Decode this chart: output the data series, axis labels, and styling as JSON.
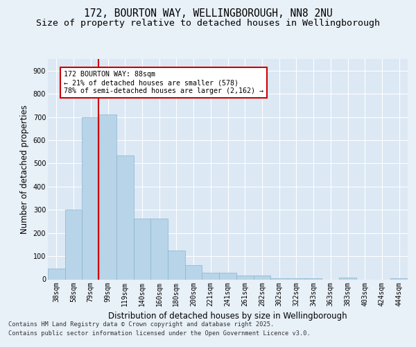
{
  "title1": "172, BOURTON WAY, WELLINGBOROUGH, NN8 2NU",
  "title2": "Size of property relative to detached houses in Wellingborough",
  "xlabel": "Distribution of detached houses by size in Wellingborough",
  "ylabel": "Number of detached properties",
  "bar_labels": [
    "38sqm",
    "58sqm",
    "79sqm",
    "99sqm",
    "119sqm",
    "140sqm",
    "160sqm",
    "180sqm",
    "200sqm",
    "221sqm",
    "241sqm",
    "261sqm",
    "282sqm",
    "302sqm",
    "322sqm",
    "343sqm",
    "363sqm",
    "383sqm",
    "403sqm",
    "424sqm",
    "444sqm"
  ],
  "bar_values": [
    45,
    300,
    700,
    710,
    535,
    262,
    262,
    125,
    60,
    28,
    28,
    15,
    15,
    3,
    3,
    3,
    0,
    7,
    0,
    0,
    3
  ],
  "bar_color": "#b8d4e8",
  "bar_edge_color": "#8ab4d0",
  "annotation_text": "172 BOURTON WAY: 88sqm\n← 21% of detached houses are smaller (578)\n78% of semi-detached houses are larger (2,162) →",
  "annotation_box_edge": "#cc0000",
  "vline_color": "#cc0000",
  "ylim": [
    0,
    950
  ],
  "yticks": [
    0,
    100,
    200,
    300,
    400,
    500,
    600,
    700,
    800,
    900
  ],
  "background_color": "#e8f0f8",
  "plot_bg_color": "#dce8f4",
  "footer1": "Contains HM Land Registry data © Crown copyright and database right 2025.",
  "footer2": "Contains public sector information licensed under the Open Government Licence v3.0.",
  "title_fontsize": 10.5,
  "subtitle_fontsize": 9.5,
  "tick_fontsize": 7,
  "ylabel_fontsize": 8.5,
  "xlabel_fontsize": 8.5,
  "footer_fontsize": 6.2
}
